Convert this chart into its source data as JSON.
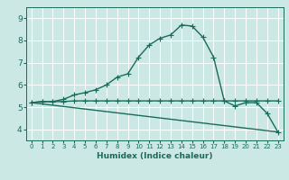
{
  "xlabel": "Humidex (Indice chaleur)",
  "xlim": [
    -0.5,
    23.5
  ],
  "ylim": [
    3.5,
    9.5
  ],
  "yticks": [
    4,
    5,
    6,
    7,
    8,
    9
  ],
  "xticks": [
    0,
    1,
    2,
    3,
    4,
    5,
    6,
    7,
    8,
    9,
    10,
    11,
    12,
    13,
    14,
    15,
    16,
    17,
    18,
    19,
    20,
    21,
    22,
    23
  ],
  "bg_color": "#cce8e4",
  "grid_color": "#ffffff",
  "line_color": "#1a6b5a",
  "line_width": 1.0,
  "marker": "+",
  "marker_size": 4,
  "series_flat": {
    "x": [
      0,
      1,
      2,
      3,
      4,
      5,
      6,
      7,
      8,
      9,
      10,
      11,
      12,
      13,
      14,
      15,
      16,
      17,
      18,
      19,
      20,
      21,
      22,
      23
    ],
    "y": [
      5.2,
      5.25,
      5.25,
      5.25,
      5.28,
      5.28,
      5.28,
      5.28,
      5.28,
      5.28,
      5.28,
      5.28,
      5.28,
      5.28,
      5.28,
      5.28,
      5.28,
      5.28,
      5.28,
      5.28,
      5.28,
      5.28,
      5.28,
      5.28
    ]
  },
  "series_main": {
    "x": [
      0,
      1,
      2,
      3,
      4,
      5,
      6,
      7,
      8,
      9,
      10,
      11,
      12,
      13,
      14,
      15,
      16,
      17,
      18,
      19,
      20,
      21,
      22,
      23
    ],
    "y": [
      5.2,
      5.25,
      5.25,
      5.35,
      5.55,
      5.65,
      5.78,
      6.0,
      6.35,
      6.5,
      7.25,
      7.8,
      8.1,
      8.25,
      8.7,
      8.65,
      8.15,
      7.25,
      5.28,
      5.05,
      5.2,
      5.2,
      4.72,
      3.88
    ]
  },
  "series_diag": {
    "x": [
      0,
      23
    ],
    "y": [
      5.2,
      3.88
    ]
  },
  "xlabel_fontsize": 6.5,
  "tick_fontsize_x": 5.0,
  "tick_fontsize_y": 6.5
}
